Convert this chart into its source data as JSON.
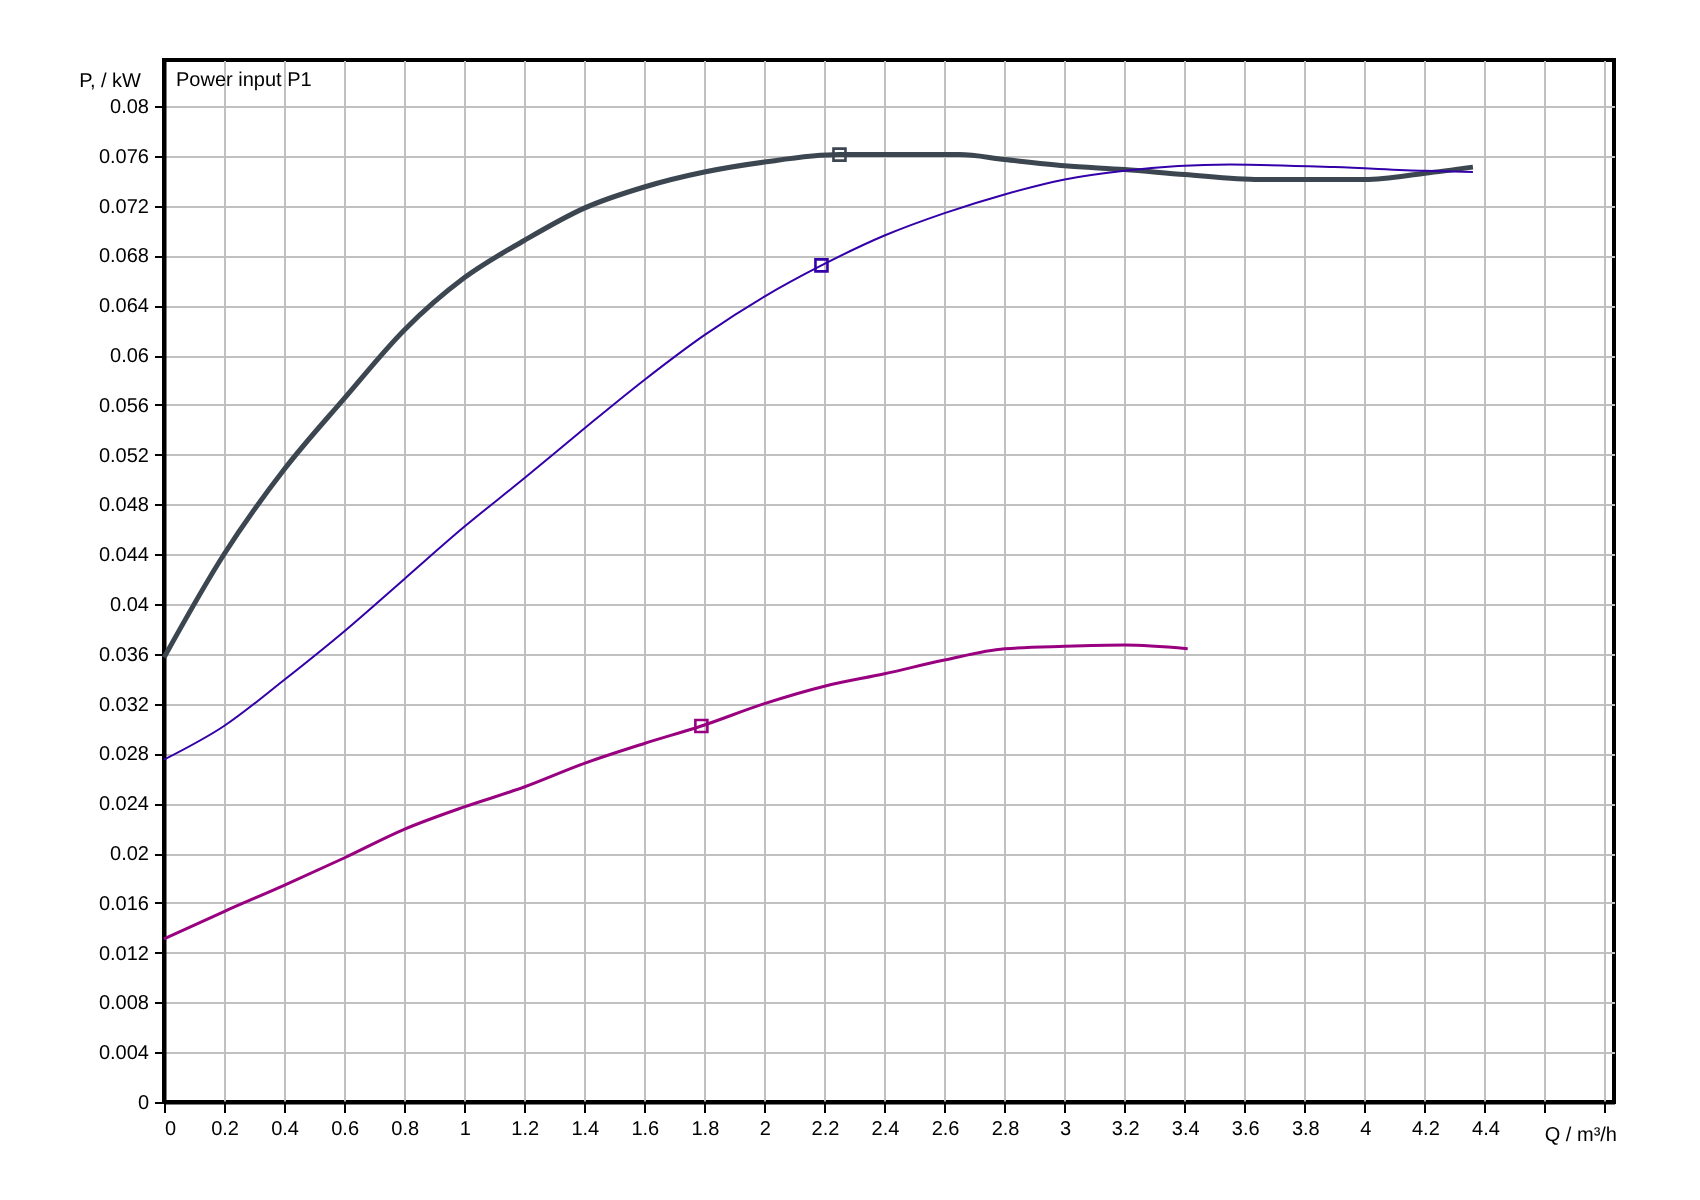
{
  "chart_data": {
    "type": "line",
    "title": "Power input P1",
    "xlabel": "Q / m³/h",
    "ylabel": "P, / kW",
    "xlim": [
      0,
      4.83
    ],
    "ylim": [
      0,
      0.0837
    ],
    "xticks": [
      0,
      0.2,
      0.4,
      0.6,
      0.8,
      1,
      1.2,
      1.4,
      1.6,
      1.8,
      2,
      2.2,
      2.4,
      2.6,
      2.8,
      3,
      3.2,
      3.4,
      3.6,
      3.8,
      4,
      4.2,
      4.4,
      {
        "value": 4.6,
        "label": null
      },
      {
        "value": 4.8,
        "label": null
      }
    ],
    "yticks": [
      0,
      0.004,
      0.008,
      0.012,
      0.016,
      0.02,
      0.024,
      0.028,
      0.032,
      0.036,
      0.04,
      0.044,
      0.048,
      0.052,
      0.056,
      0.06,
      0.064,
      0.068,
      0.072,
      0.076,
      0.08
    ],
    "grid": true,
    "line_style": "solid",
    "series": [
      {
        "type": "line",
        "color": "#3c4650",
        "x": [
          0,
          0.2,
          0.4,
          0.6,
          0.8,
          1,
          1.2,
          1.4,
          1.6,
          1.8,
          2,
          2.25,
          2.65,
          2.8,
          3,
          3.2,
          3.4,
          3.65,
          4,
          4.2,
          4.36
        ],
        "values": [
          0.0357,
          0.044,
          0.0508,
          0.0565,
          0.062,
          0.0662,
          0.0692,
          0.0718,
          0.0735,
          0.0747,
          0.0755,
          0.0761,
          0.0761,
          0.0757,
          0.0752,
          0.0749,
          0.0745,
          0.0741,
          0.0741,
          0.0746,
          0.0751
        ]
      },
      {
        "type": "line",
        "color": "#3300aa",
        "x": [
          0,
          0.2,
          0.4,
          0.6,
          0.8,
          1,
          1.2,
          1.4,
          1.6,
          1.8,
          2,
          2.19,
          2.4,
          2.6,
          2.8,
          3,
          3.2,
          3.55,
          3.9,
          4.2,
          4.36
        ],
        "values": [
          0.0275,
          0.0302,
          0.0339,
          0.0378,
          0.042,
          0.0462,
          0.0501,
          0.0541,
          0.058,
          0.0616,
          0.0647,
          0.0672,
          0.0696,
          0.0714,
          0.0729,
          0.0741,
          0.0748,
          0.0753,
          0.0751,
          0.0748,
          0.0747
        ]
      },
      {
        "type": "line",
        "color": "#990080",
        "x": [
          0,
          0.2,
          0.4,
          0.6,
          0.8,
          1,
          1.2,
          1.4,
          1.6,
          1.79,
          2,
          2.2,
          2.4,
          2.6,
          2.8,
          3,
          3.2,
          3.41
        ],
        "values": [
          0.0131,
          0.0153,
          0.0174,
          0.0196,
          0.0219,
          0.0237,
          0.0253,
          0.0272,
          0.0288,
          0.0302,
          0.032,
          0.0334,
          0.0344,
          0.0355,
          0.0364,
          0.0366,
          0.0367,
          0.0364
        ]
      },
      {
        "type": "scatter",
        "marker": "square",
        "color": "#3c4650",
        "x": [
          2.25
        ],
        "values": [
          0.0761
        ]
      },
      {
        "type": "scatter",
        "marker": "square",
        "color": "#3300aa",
        "x": [
          2.19
        ],
        "values": [
          0.0672
        ]
      },
      {
        "type": "scatter",
        "marker": "square",
        "color": "#990080",
        "x": [
          1.79
        ],
        "values": [
          0.0302
        ]
      }
    ]
  }
}
